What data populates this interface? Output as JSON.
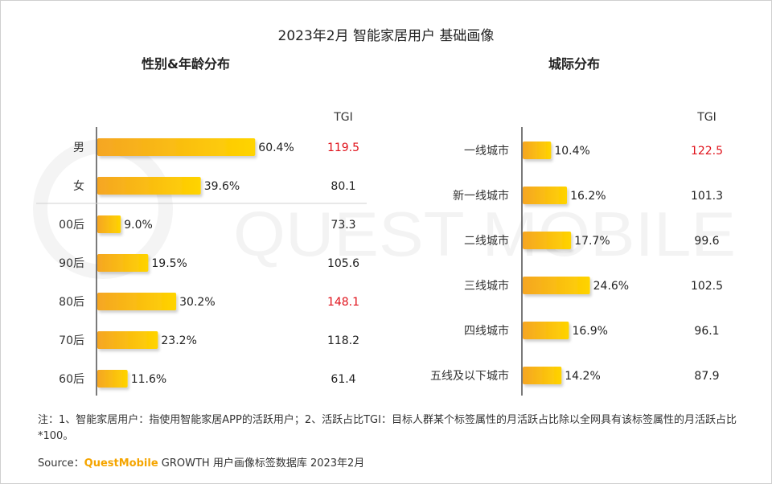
{
  "title": "2023年2月 智能家居用户 基础画像",
  "panels": {
    "left": {
      "title": "性别&年龄分布"
    },
    "right": {
      "title": "城际分布"
    }
  },
  "watermark": "QUEST MOBILE",
  "chart_data": [
    {
      "type": "bar",
      "orientation": "horizontal",
      "title": "性别&年龄分布",
      "tgi_header": "TGI",
      "categories": [
        "男",
        "女",
        "00后",
        "90后",
        "80后",
        "70后",
        "60后"
      ],
      "values": [
        60.4,
        39.6,
        9.0,
        19.5,
        30.2,
        23.2,
        11.6
      ],
      "value_labels": [
        "60.4%",
        "39.6%",
        "9.0%",
        "19.5%",
        "30.2%",
        "23.2%",
        "11.6%"
      ],
      "tgi": [
        "119.5",
        "80.1",
        "73.3",
        "105.6",
        "148.1",
        "118.2",
        "61.4"
      ],
      "tgi_highlight": [
        true,
        false,
        false,
        false,
        true,
        false,
        false
      ],
      "groups": [
        [
          "男",
          "女"
        ],
        [
          "00后",
          "90后",
          "80后",
          "70后",
          "60后"
        ]
      ]
    },
    {
      "type": "bar",
      "orientation": "horizontal",
      "title": "城际分布",
      "tgi_header": "TGI",
      "categories": [
        "一线城市",
        "新一线城市",
        "二线城市",
        "三线城市",
        "四线城市",
        "五线及以下城市"
      ],
      "values": [
        10.4,
        16.2,
        17.7,
        24.6,
        16.9,
        14.2
      ],
      "value_labels": [
        "10.4%",
        "16.2%",
        "17.7%",
        "24.6%",
        "16.9%",
        "14.2%"
      ],
      "tgi": [
        "122.5",
        "101.3",
        "99.6",
        "102.5",
        "96.1",
        "87.9"
      ],
      "tgi_highlight": [
        true,
        false,
        false,
        false,
        false,
        false
      ]
    }
  ],
  "colors": {
    "bar_start": "#f5a623",
    "bar_end": "#ffd400",
    "highlight": "#e0121b",
    "text": "#333333",
    "brand": "#f5a500"
  },
  "footer": {
    "note": "注：1、智能家居用户：指使用智能家居APP的活跃用户；2、活跃占比TGI：目标人群某个标签属性的月活跃占比除以全网具有该标签属性的月活跃占比*100。",
    "source_prefix": "Source：",
    "source_brand": "QuestMobile",
    "source_suffix": " GROWTH 用户画像标签数据库 2023年2月"
  }
}
